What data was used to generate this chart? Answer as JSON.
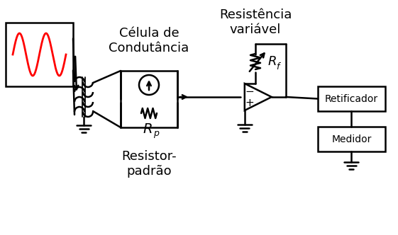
{
  "bg_color": "#ffffff",
  "line_color": "#000000",
  "sine_color": "#ff0000",
  "lw": 1.8,
  "title": "",
  "labels": {
    "celula": "Célula de\nCondutância",
    "resistencia": "Resistência\nvariável",
    "rp": "R",
    "rp_sub": "p",
    "rf": "R",
    "rf_sub": "f",
    "resistor_padrao": "Resistor-\npadrão",
    "retificador": "Retificador",
    "medidor": "Medidor",
    "plus": "+",
    "minus": "−"
  }
}
